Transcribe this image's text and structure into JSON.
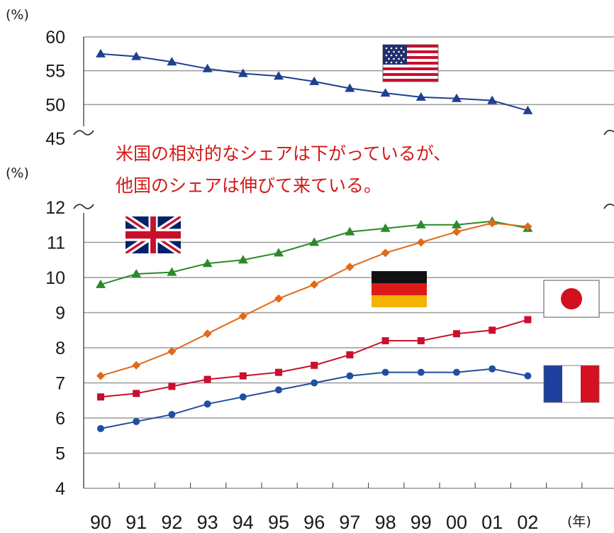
{
  "chart_data": {
    "type": "line",
    "x_unit": "(年)",
    "categories": [
      "90",
      "91",
      "92",
      "93",
      "94",
      "95",
      "96",
      "97",
      "98",
      "99",
      "00",
      "01",
      "02"
    ],
    "upper_panel": {
      "y_unit": "(%)",
      "yticks": [
        "60",
        "55",
        "50",
        "45"
      ],
      "ylim": [
        45,
        60
      ],
      "series": [
        {
          "flag": "us-flag",
          "color": "#1f3f8f",
          "marker": "triangle",
          "values": [
            57.5,
            57.1,
            56.3,
            55.3,
            54.6,
            54.2,
            53.4,
            52.4,
            51.7,
            51.1,
            50.9,
            50.6,
            49.1
          ]
        }
      ]
    },
    "lower_panel": {
      "y_unit": "(%)",
      "yticks": [
        "12",
        "11",
        "10",
        "9",
        "8",
        "7",
        "6",
        "5",
        "4"
      ],
      "ylim": [
        4,
        12
      ],
      "series": [
        {
          "flag": "uk-flag",
          "color": "#2a8a2a",
          "marker": "triangle",
          "values": [
            9.8,
            10.1,
            10.15,
            10.4,
            10.5,
            10.7,
            11.0,
            11.3,
            11.4,
            11.5,
            11.5,
            11.6,
            11.4
          ]
        },
        {
          "flag": "germany-flag",
          "color": "#e06a1a",
          "marker": "diamond",
          "values": [
            7.2,
            7.5,
            7.9,
            8.4,
            8.9,
            9.4,
            9.8,
            10.3,
            10.7,
            11.0,
            11.3,
            11.55,
            11.45
          ]
        },
        {
          "flag": "japan-flag",
          "color": "#c8102e",
          "marker": "square",
          "values": [
            6.6,
            6.7,
            6.9,
            7.1,
            7.2,
            7.3,
            7.5,
            7.8,
            8.2,
            8.2,
            8.4,
            8.5,
            8.8
          ]
        },
        {
          "flag": "france-flag",
          "color": "#1f4fa0",
          "marker": "circle",
          "values": [
            5.7,
            5.9,
            6.1,
            6.4,
            6.6,
            6.8,
            7.0,
            7.2,
            7.3,
            7.3,
            7.3,
            7.4,
            7.2
          ]
        }
      ]
    },
    "annotation": [
      "米国の相対的なシェアは下がっているが、",
      "他国のシェアは伸びて来ている。"
    ],
    "grid": true
  }
}
